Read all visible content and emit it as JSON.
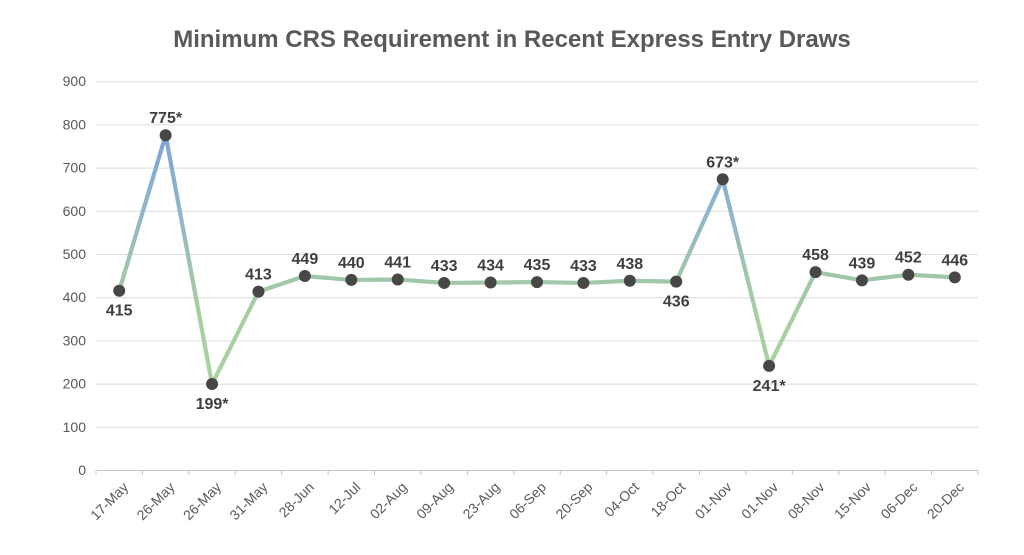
{
  "chart_data": {
    "type": "line",
    "title": "Minimum CRS Requirement in Recent Express Entry Draws",
    "categories": [
      "17-May",
      "26-May",
      "26-May",
      "31-May",
      "28-Jun",
      "12-Jul",
      "02-Aug",
      "09-Aug",
      "23-Aug",
      "06-Sep",
      "20-Sep",
      "04-Oct",
      "18-Oct",
      "01-Nov",
      "01-Nov",
      "08-Nov",
      "15-Nov",
      "06-Dec",
      "20-Dec"
    ],
    "series": [
      {
        "name": "Minimum CRS",
        "values": [
          415,
          775,
          199,
          413,
          449,
          440,
          441,
          433,
          434,
          435,
          433,
          438,
          436,
          673,
          241,
          458,
          439,
          452,
          446
        ],
        "point_labels": [
          "415",
          "775*",
          "199*",
          "413",
          "449",
          "440",
          "441",
          "433",
          "434",
          "435",
          "433",
          "438",
          "436",
          "673*",
          "241*",
          "458",
          "439",
          "452",
          "446"
        ],
        "label_positions": [
          "below",
          "above",
          "below",
          "above",
          "above",
          "above",
          "above",
          "above",
          "above",
          "above",
          "above",
          "above",
          "below",
          "above",
          "below",
          "above",
          "above",
          "above",
          "above"
        ]
      }
    ],
    "ylim": [
      0,
      900
    ],
    "yticks": [
      0,
      100,
      200,
      300,
      400,
      500,
      600,
      700,
      800,
      900
    ],
    "grid": true,
    "legend_position": "none",
    "xlabel": "",
    "ylabel": "",
    "colors": {
      "title": "#595959",
      "axis_label": "#595959",
      "data_label": "#3f3f3f",
      "gridline": "#dcdcdc",
      "axis_line": "#c3c3c3",
      "marker": "#474747",
      "line_gradient": [
        {
          "offset": 0,
          "color": "#7ca2d8"
        },
        {
          "offset": 0.3,
          "color": "#8eb4cc"
        },
        {
          "offset": 0.55,
          "color": "#a0c6ab"
        },
        {
          "offset": 0.72,
          "color": "#a8cea1"
        },
        {
          "offset": 1,
          "color": "#aad1a3"
        }
      ]
    }
  }
}
